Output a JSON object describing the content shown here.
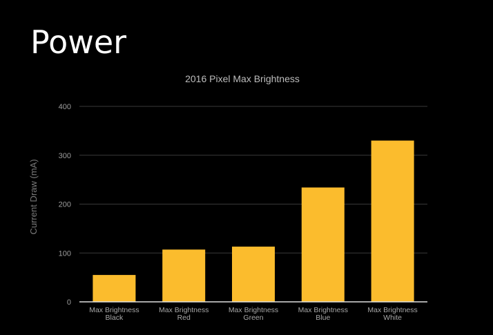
{
  "slide": {
    "title": "Power"
  },
  "chart_data": {
    "type": "bar",
    "title": "2016 Pixel Max Brightness",
    "xlabel": "",
    "ylabel": "Current Draw (mA)",
    "ylim": [
      0,
      400
    ],
    "yticks": [
      0,
      100,
      200,
      300,
      400
    ],
    "categories": [
      [
        "Max Brightness",
        "Black"
      ],
      [
        "Max Brightness",
        "Red"
      ],
      [
        "Max Brightness",
        "Green"
      ],
      [
        "Max Brightness",
        "Blue"
      ],
      [
        "Max Brightness",
        "White"
      ]
    ],
    "values": [
      55,
      107,
      113,
      234,
      330
    ],
    "grid": true,
    "legend": "none",
    "colors": {
      "bar": "#fbbc2d",
      "gridline": "#3a3a3a",
      "axis": "#e0e0e0"
    }
  }
}
